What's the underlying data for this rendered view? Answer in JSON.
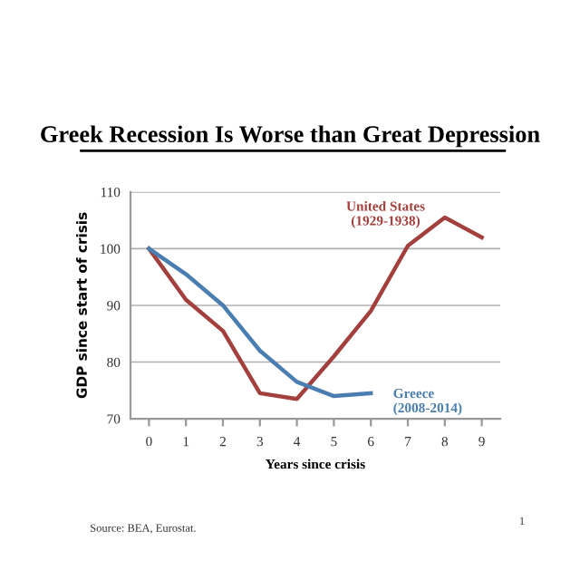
{
  "chart_data": {
    "type": "line",
    "title": "Greek Recession Is Worse than Great Depression",
    "xlabel": "Years since crisis",
    "ylabel": "GDP since start of crisis",
    "categories": [
      "0",
      "1",
      "2",
      "3",
      "4",
      "5",
      "6",
      "7",
      "8",
      "9"
    ],
    "series": [
      {
        "name": "United States\n(1929-1938)",
        "color": "#a3403d",
        "values": [
          100,
          91,
          85.5,
          74.5,
          73.5,
          81,
          89,
          100.5,
          105.5,
          102
        ]
      },
      {
        "name": "Greece\n(2008-2014)",
        "color": "#4a7eb0",
        "values": [
          100,
          95.5,
          90,
          82,
          76.5,
          74,
          74.5,
          null,
          null,
          null
        ]
      }
    ],
    "ylim": [
      70,
      110
    ],
    "yticks": [
      70,
      80,
      90,
      100,
      110
    ],
    "grid": "y",
    "legend": false,
    "marker": "none",
    "line_style": "solid",
    "annotations": [
      "Source: BEA, Eurostat.",
      "1"
    ]
  }
}
